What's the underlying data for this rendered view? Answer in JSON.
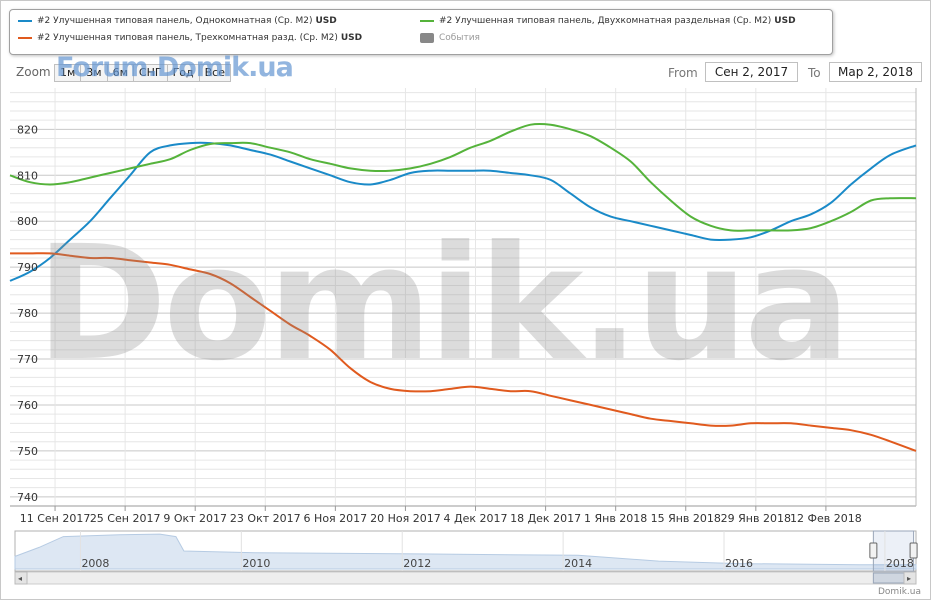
{
  "legend": {
    "items": [
      {
        "label": "#2 Улучшенная типовая панель, Однокомнатная (Ср. М2)",
        "unit": "USD",
        "color": "#1a8ac8"
      },
      {
        "label": "#2 Улучшенная типовая панель, Двухкомнатная раздельная (Ср. М2)",
        "unit": "USD",
        "color": "#55b33b"
      },
      {
        "label": "#2 Улучшенная типовая панель, Трехкомнатная разд. (Ср. М2)",
        "unit": "USD",
        "color": "#e05a1e"
      }
    ],
    "events_label": "События"
  },
  "zoom": {
    "label": "Zoom",
    "buttons": [
      "1м",
      "3м",
      "6м",
      "СНГ",
      "Год",
      "Все"
    ]
  },
  "range": {
    "from_label": "From",
    "from_value": "Сен 2, 2017",
    "to_label": "To",
    "to_value": "Мар 2, 2018"
  },
  "event_dot_colors": [
    "#5b97d0",
    "#d6e07a",
    "#dd6d8b"
  ],
  "watermarks": {
    "forum": "Forum.Domik.ua",
    "big": "Domik.ua"
  },
  "credit": "Domik.ua",
  "chart_data": {
    "type": "line",
    "y_ticks": [
      740,
      750,
      760,
      770,
      780,
      790,
      800,
      810,
      820
    ],
    "ylim": [
      738,
      829
    ],
    "x_tick_labels": [
      "11 Сен 2017",
      "25 Сен 2017",
      "9 Окт 2017",
      "23 Окт 2017",
      "6 Ноя 2017",
      "20 Ноя 2017",
      "4 Дек 2017",
      "18 Дек 2017",
      "1 Янв 2018",
      "15 Янв 2018",
      "29 Янв 2018",
      "12 Фев 2018"
    ],
    "x_start": "2017-09-02",
    "x_end": "2018-03-02",
    "grid": true,
    "series": [
      {
        "name": "#2 Улучшенная типовая панель, Однокомнатная (Ср. М2)",
        "color": "#1a8ac8",
        "x": [
          "2017-09-02",
          "2017-09-06",
          "2017-09-10",
          "2017-09-14",
          "2017-09-18",
          "2017-09-22",
          "2017-09-26",
          "2017-09-30",
          "2017-10-04",
          "2017-10-08",
          "2017-10-12",
          "2017-10-16",
          "2017-10-20",
          "2017-10-24",
          "2017-10-28",
          "2017-11-01",
          "2017-11-05",
          "2017-11-09",
          "2017-11-13",
          "2017-11-17",
          "2017-11-21",
          "2017-11-25",
          "2017-11-29",
          "2017-12-03",
          "2017-12-07",
          "2017-12-11",
          "2017-12-15",
          "2017-12-19",
          "2017-12-23",
          "2017-12-27",
          "2017-12-31",
          "2018-01-04",
          "2018-01-08",
          "2018-01-12",
          "2018-01-16",
          "2018-01-20",
          "2018-01-24",
          "2018-01-28",
          "2018-02-01",
          "2018-02-05",
          "2018-02-09",
          "2018-02-13",
          "2018-02-17",
          "2018-02-21",
          "2018-02-25",
          "2018-03-02"
        ],
        "values": [
          787,
          789,
          792,
          796,
          800,
          805,
          810,
          815,
          816.5,
          817,
          817,
          816.5,
          815.5,
          814.5,
          813,
          811.5,
          810,
          808.5,
          808,
          809,
          810.5,
          811,
          811,
          811,
          811,
          810.5,
          810,
          809,
          806,
          803,
          801,
          800,
          799,
          798,
          797,
          796,
          796,
          796.5,
          798,
          800,
          801.5,
          804,
          808,
          811.5,
          814.5,
          816.5
        ]
      },
      {
        "name": "#2 Улучшенная типовая панель, Двухкомнатная раздельная (Ср. М2)",
        "color": "#55b33b",
        "x": [
          "2017-09-02",
          "2017-09-06",
          "2017-09-10",
          "2017-09-14",
          "2017-09-18",
          "2017-09-22",
          "2017-09-26",
          "2017-09-30",
          "2017-10-04",
          "2017-10-08",
          "2017-10-12",
          "2017-10-16",
          "2017-10-20",
          "2017-10-24",
          "2017-10-28",
          "2017-11-01",
          "2017-11-05",
          "2017-11-09",
          "2017-11-13",
          "2017-11-17",
          "2017-11-21",
          "2017-11-25",
          "2017-11-29",
          "2017-12-03",
          "2017-12-07",
          "2017-12-11",
          "2017-12-15",
          "2017-12-19",
          "2017-12-23",
          "2017-12-27",
          "2017-12-31",
          "2018-01-04",
          "2018-01-08",
          "2018-01-12",
          "2018-01-16",
          "2018-01-20",
          "2018-01-24",
          "2018-01-28",
          "2018-02-01",
          "2018-02-05",
          "2018-02-09",
          "2018-02-13",
          "2018-02-17",
          "2018-02-21",
          "2018-02-25",
          "2018-03-02"
        ],
        "values": [
          810,
          808.5,
          808,
          808.5,
          809.5,
          810.5,
          811.5,
          812.5,
          813.5,
          815.5,
          816.8,
          817,
          817,
          816,
          815,
          813.5,
          812.5,
          811.5,
          811,
          811,
          811.5,
          812.5,
          814,
          816,
          817.5,
          819.5,
          821,
          821,
          820,
          818.5,
          816,
          813,
          808.5,
          804.5,
          801,
          799,
          798,
          798,
          798,
          798,
          798.5,
          800,
          802,
          804.5,
          805,
          805
        ]
      },
      {
        "name": "#2 Улучшенная типовая панель, Трехкомнатная разд. (Ср. М2)",
        "color": "#e05a1e",
        "x": [
          "2017-09-02",
          "2017-09-06",
          "2017-09-10",
          "2017-09-14",
          "2017-09-18",
          "2017-09-22",
          "2017-09-26",
          "2017-09-30",
          "2017-10-04",
          "2017-10-08",
          "2017-10-12",
          "2017-10-16",
          "2017-10-20",
          "2017-10-24",
          "2017-10-28",
          "2017-11-01",
          "2017-11-05",
          "2017-11-09",
          "2017-11-13",
          "2017-11-17",
          "2017-11-21",
          "2017-11-25",
          "2017-11-29",
          "2017-12-03",
          "2017-12-07",
          "2017-12-11",
          "2017-12-15",
          "2017-12-19",
          "2017-12-23",
          "2017-12-27",
          "2017-12-31",
          "2018-01-04",
          "2018-01-08",
          "2018-01-12",
          "2018-01-16",
          "2018-01-20",
          "2018-01-24",
          "2018-01-28",
          "2018-02-01",
          "2018-02-05",
          "2018-02-09",
          "2018-02-13",
          "2018-02-17",
          "2018-02-21",
          "2018-02-25",
          "2018-03-02"
        ],
        "values": [
          793,
          793,
          793,
          792.5,
          792,
          792,
          791.5,
          791,
          790.5,
          789.5,
          788.5,
          786.5,
          783.5,
          780.5,
          777.5,
          775,
          772,
          768,
          765,
          763.5,
          763,
          763,
          763.5,
          764,
          763.5,
          763,
          763,
          762,
          761,
          760,
          759,
          758,
          757,
          756.5,
          756,
          755.5,
          755.5,
          756,
          756,
          756,
          755.5,
          755,
          754.5,
          753.5,
          752,
          750
        ]
      }
    ]
  },
  "navigator": {
    "year_labels": [
      "2008",
      "2010",
      "2012",
      "2014",
      "2016",
      "2018"
    ],
    "year_start": 2007,
    "year_end": 2018.2,
    "profile": [
      {
        "year": 2007.0,
        "value": 0.35
      },
      {
        "year": 2007.3,
        "value": 0.6
      },
      {
        "year": 2007.6,
        "value": 0.9
      },
      {
        "year": 2008.3,
        "value": 0.95
      },
      {
        "year": 2008.8,
        "value": 0.97
      },
      {
        "year": 2009.0,
        "value": 0.9
      },
      {
        "year": 2009.1,
        "value": 0.5
      },
      {
        "year": 2010.0,
        "value": 0.45
      },
      {
        "year": 2012.0,
        "value": 0.42
      },
      {
        "year": 2014.0,
        "value": 0.38
      },
      {
        "year": 2015.0,
        "value": 0.22
      },
      {
        "year": 2016.0,
        "value": 0.15
      },
      {
        "year": 2017.5,
        "value": 0.12
      },
      {
        "year": 2018.2,
        "value": 0.12
      }
    ],
    "window_start_year": 2017.67,
    "window_end_year": 2018.17
  }
}
